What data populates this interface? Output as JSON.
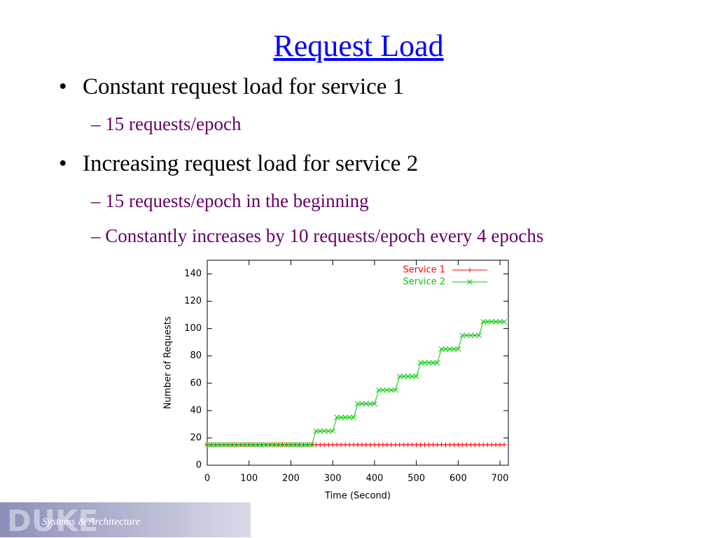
{
  "title": "Request Load",
  "bullets": [
    {
      "text": "Constant request load for service 1",
      "sub": [
        "15 requests/epoch"
      ]
    },
    {
      "text": "Increasing request load for service 2",
      "sub": [
        "15 requests/epoch in the beginning",
        "Constantly increases by 10 requests/epoch every 4 epochs"
      ]
    }
  ],
  "chart_data": {
    "type": "line",
    "x_label": "Time (Second)",
    "y_label": "Number of Requests",
    "x": [
      0,
      10,
      20,
      30,
      40,
      50,
      60,
      70,
      80,
      90,
      100,
      110,
      120,
      130,
      140,
      150,
      160,
      170,
      180,
      190,
      200,
      210,
      220,
      230,
      240,
      250,
      260,
      270,
      280,
      290,
      300,
      310,
      320,
      330,
      340,
      350,
      360,
      370,
      380,
      390,
      400,
      410,
      420,
      430,
      440,
      450,
      460,
      470,
      480,
      490,
      500,
      510,
      520,
      530,
      540,
      550,
      560,
      570,
      580,
      590,
      600,
      610,
      620,
      630,
      640,
      650,
      660,
      670,
      680,
      690,
      700,
      710
    ],
    "series": [
      {
        "name": "Service 1",
        "color": "#ff0000",
        "marker": "+",
        "values": [
          15,
          15,
          15,
          15,
          15,
          15,
          15,
          15,
          15,
          15,
          15,
          15,
          15,
          15,
          15,
          15,
          15,
          15,
          15,
          15,
          15,
          15,
          15,
          15,
          15,
          15,
          15,
          15,
          15,
          15,
          15,
          15,
          15,
          15,
          15,
          15,
          15,
          15,
          15,
          15,
          15,
          15,
          15,
          15,
          15,
          15,
          15,
          15,
          15,
          15,
          15,
          15,
          15,
          15,
          15,
          15,
          15,
          15,
          15,
          15,
          15,
          15,
          15,
          15,
          15,
          15,
          15,
          15,
          15,
          15,
          15,
          15
        ]
      },
      {
        "name": "Service 2",
        "color": "#00cc00",
        "marker": "x",
        "values": [
          15,
          15,
          15,
          15,
          15,
          15,
          15,
          15,
          15,
          15,
          15,
          15,
          15,
          15,
          15,
          15,
          15,
          15,
          15,
          15,
          15,
          15,
          15,
          15,
          15,
          15,
          25,
          25,
          25,
          25,
          25,
          35,
          35,
          35,
          35,
          35,
          45,
          45,
          45,
          45,
          45,
          55,
          55,
          55,
          55,
          55,
          65,
          65,
          65,
          65,
          65,
          75,
          75,
          75,
          75,
          75,
          85,
          85,
          85,
          85,
          85,
          95,
          95,
          95,
          95,
          95,
          105,
          105,
          105,
          105,
          105,
          105
        ]
      }
    ],
    "xlim": [
      0,
      720
    ],
    "xticks": [
      0,
      100,
      200,
      300,
      400,
      500,
      600,
      700
    ],
    "ylim": [
      0,
      150
    ],
    "yticks": [
      0,
      20,
      40,
      60,
      80,
      100,
      120,
      140
    ]
  },
  "footer": {
    "logo": "DUKE",
    "text": "Systems & Architecture"
  }
}
